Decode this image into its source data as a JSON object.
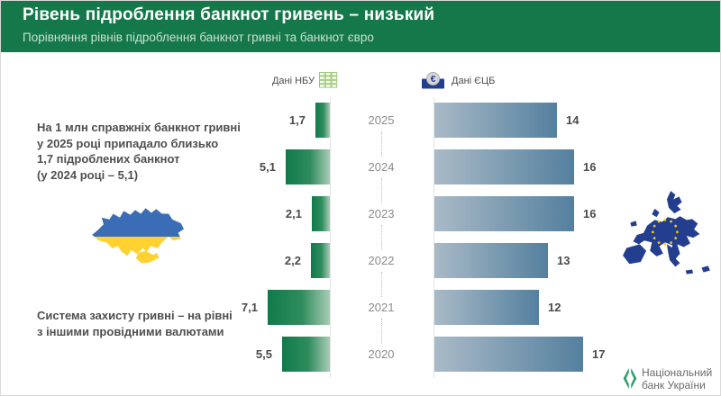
{
  "header": {
    "title": "Рівень підроблення банкнот гривень – низький",
    "subtitle": "Порівняння рівнів підроблення банкнот гривні та банкнот євро",
    "bg_color": "#15784a"
  },
  "legend": {
    "nbu_label": "Дані НБУ",
    "ecb_label": "Дані ЄЦБ"
  },
  "annotations": {
    "top_note_lines": [
      "На 1 млн справжніх банкнот гривні",
      "у 2025 році припадало близько",
      "1,7 підроблених банкнот",
      "(у 2024 році – 5,1)"
    ],
    "bottom_note_lines": [
      "Система захисту гривні – на рівні",
      "з іншими провідними валютами"
    ]
  },
  "chart_data": {
    "type": "bar",
    "orientation": "horizontal-diverging",
    "title": "Порівняння рівнів підроблення банкнот гривні та банкнот євро",
    "units": "підроблених банкнот на 1 млн справжніх",
    "categories": [
      "2025",
      "2024",
      "2023",
      "2022",
      "2021",
      "2020"
    ],
    "series": [
      {
        "name": "Дані НБУ",
        "values": [
          1.7,
          5.1,
          2.1,
          2.2,
          7.1,
          5.5
        ],
        "labels": [
          "1,7",
          "5,1",
          "2,1",
          "2,2",
          "7,1",
          "5,5"
        ],
        "color_start": "#107a4b",
        "color_mid": "#2f8c5c",
        "color_end": "#a8ccb6"
      },
      {
        "name": "Дані ЄЦБ",
        "values": [
          14,
          16,
          16,
          13,
          12,
          17
        ],
        "labels": [
          "14",
          "16",
          "16",
          "13",
          "12",
          "17"
        ],
        "color_start": "#a9bac7",
        "color_mid": "#7f9bb2",
        "color_end": "#54809e"
      }
    ],
    "legend_position": "top",
    "grid": "dotted-category-separators"
  },
  "colors": {
    "ukraine_blue": "#3a6db5",
    "ukraine_yellow": "#ffd232",
    "eu_blue": "#243e8f",
    "eu_star_yellow": "#ffcc00",
    "nbu_logo_green": "#2f9e68",
    "note_ink": "#4f4f4f"
  },
  "footer": {
    "org_line1": "Національний",
    "org_line2": "банк України"
  }
}
